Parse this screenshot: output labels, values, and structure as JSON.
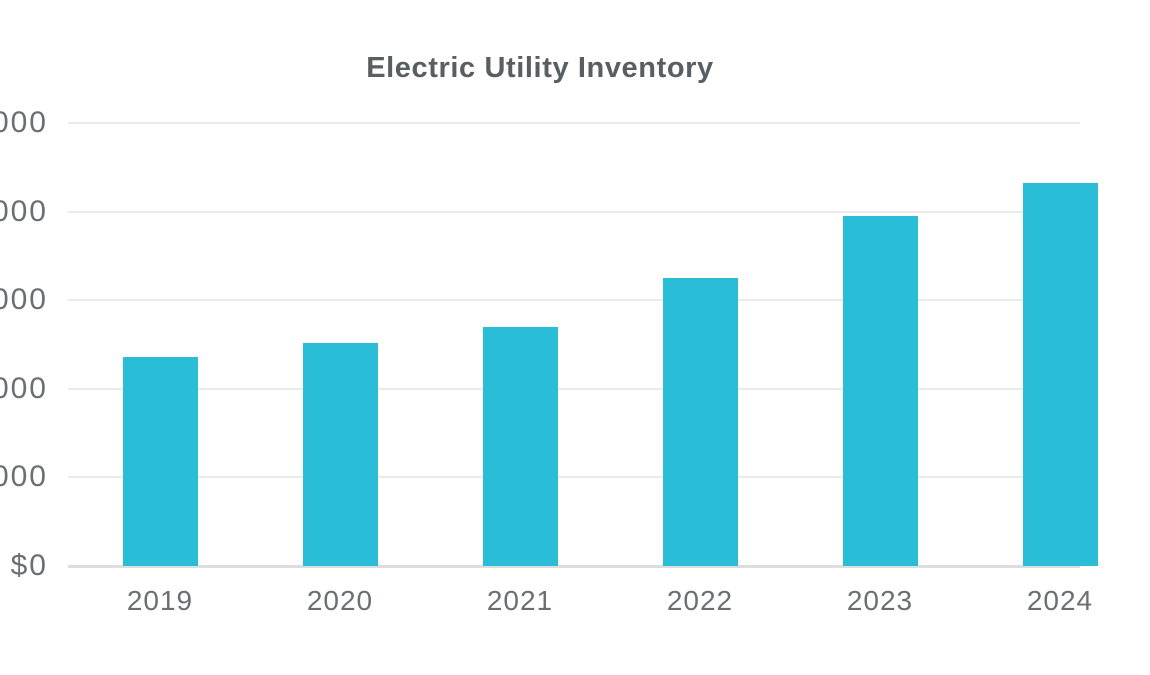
{
  "chart_data": {
    "type": "bar",
    "title": "Electric Utility Inventory",
    "xlabel": "",
    "ylabel": "",
    "legend": "none",
    "grid": "horizontal-only",
    "categories": [
      "2019",
      "2020",
      "2021",
      "2022",
      "2023",
      "2024"
    ],
    "values_gridline_units": [
      2.36,
      2.52,
      2.7,
      3.25,
      3.95,
      4.32
    ],
    "y_tick_labels_top_to_bottom": [
      "000",
      "000",
      "000",
      "000",
      "000",
      "$0"
    ],
    "ylim_gridline_units": [
      0,
      5
    ],
    "colors": {
      "background": "#ffffff",
      "bar": "#29bdd8",
      "title_text": "#595e62",
      "axis_text": "#6b6f72",
      "gridline": "#eaebec",
      "baseline": "#dcddde"
    }
  }
}
